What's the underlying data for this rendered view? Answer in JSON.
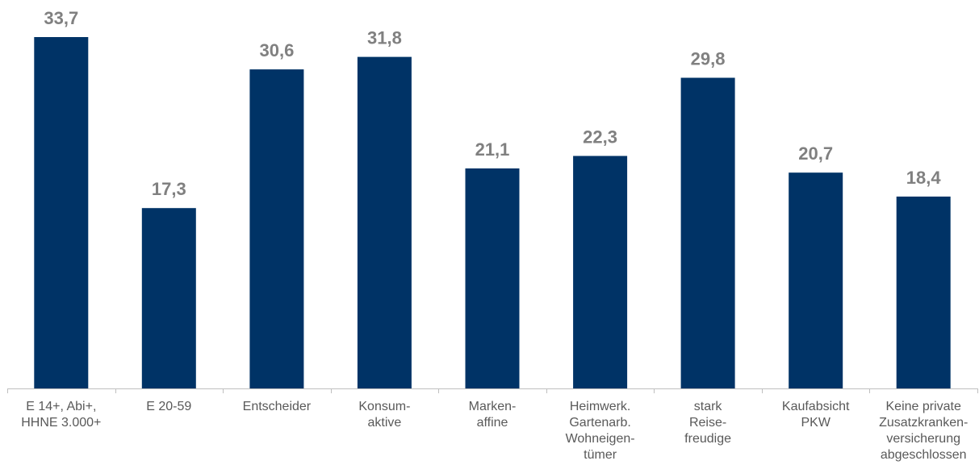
{
  "chart_data": {
    "type": "bar",
    "categories": [
      [
        "E 14+, Abi+,",
        "HHNE 3.000+"
      ],
      [
        "E 20-59"
      ],
      [
        "Entscheider"
      ],
      [
        "Konsum-",
        "aktive"
      ],
      [
        "Marken-",
        "affine"
      ],
      [
        "Heimwerk.",
        "Gartenarb.",
        "Wohneigen-",
        "tümer"
      ],
      [
        "stark",
        "Reise-",
        "freudige"
      ],
      [
        "Kaufabsicht",
        "PKW"
      ],
      [
        "Keine private",
        "Zusatzkranken-",
        "versicherung",
        "abgeschlossen"
      ]
    ],
    "values": [
      33.7,
      17.3,
      30.6,
      31.8,
      21.1,
      22.3,
      29.8,
      20.7,
      18.4
    ],
    "value_labels": [
      "33,7",
      "17,3",
      "30,6",
      "31,8",
      "21,1",
      "22,3",
      "29,8",
      "20,7",
      "18,4"
    ],
    "title": "",
    "xlabel": "",
    "ylabel": "",
    "ylim": [
      0,
      33.7
    ],
    "grid": false,
    "legend": "none",
    "colors": {
      "bar": "#003366",
      "value_label": "#808080",
      "category_label": "#595959",
      "axis": "#bfbfbf"
    }
  }
}
